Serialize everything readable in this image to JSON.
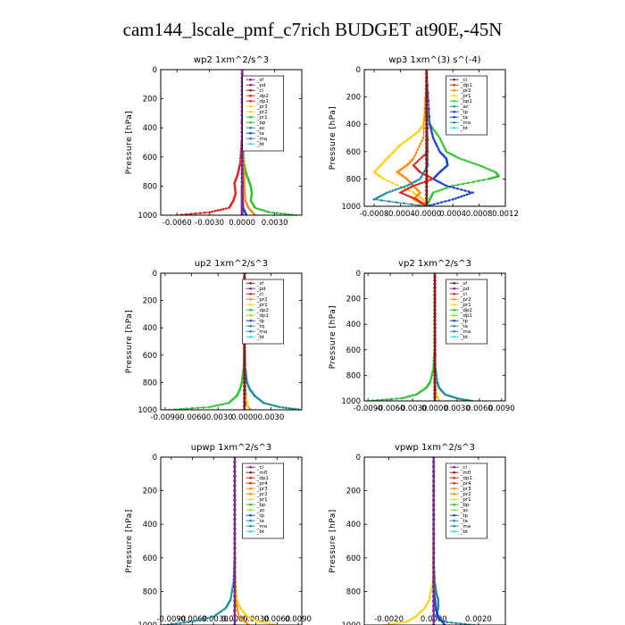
{
  "suptitle": "cam144_lscale_pmf_c7rich  BUDGET at90E,-45N",
  "colors": {
    "purple": "#7b2a8c",
    "darkred": "#8b1a1a",
    "red": "#dd2222",
    "orange": "#ff8c00",
    "yellow": "#ffd21f",
    "green": "#2fc42f",
    "blue": "#1c3fdd",
    "teal": "#1f8fa0",
    "lime": "#8fe030",
    "cyan": "#2ed8e8"
  },
  "chart_data": [
    {
      "type": "line",
      "title": "wp2  1xm^2/s^3",
      "ylabel": "Pressure [hPa]",
      "xlim": [
        -0.0075,
        0.0055
      ],
      "xticks": [
        "-0.0060",
        "-0.0030",
        "0.0000",
        "0.0030"
      ],
      "xtick_values": [
        -0.006,
        -0.003,
        0,
        0.003
      ],
      "ylim": [
        1000,
        0
      ],
      "yticks": [
        "0",
        "200",
        "400",
        "600",
        "800",
        "1000"
      ],
      "legend": [
        "_sf",
        "_pd",
        "_cl",
        "_dp2",
        "_dp1",
        "_pr3",
        "_pr2",
        "_pr1",
        "_bp",
        "_ac",
        "_ta",
        "_ma",
        "_bt"
      ],
      "legend_colors": [
        "purple",
        "purple",
        "darkred",
        "red",
        "red",
        "yellow",
        "yellow",
        "green",
        "green",
        "teal",
        "blue",
        "teal",
        "cyan"
      ],
      "series": [
        {
          "color": "green",
          "p": [
            0,
            500,
            650,
            720,
            760,
            800,
            850,
            900,
            950,
            980,
            1000
          ],
          "x": [
            0,
            5e-05,
            0.0002,
            0.0004,
            0.0006,
            0.0008,
            0.0009,
            0.0008,
            0.0012,
            0.0025,
            0.005
          ]
        },
        {
          "color": "red",
          "p": [
            0,
            500,
            650,
            720,
            780,
            850,
            900,
            950,
            980,
            1000
          ],
          "x": [
            0,
            -5e-05,
            -0.0002,
            -0.0004,
            -0.0007,
            -0.0006,
            -0.0008,
            -0.0012,
            -0.003,
            -0.006
          ]
        },
        {
          "color": "orange",
          "p": [
            0,
            600,
            700,
            800,
            900,
            950,
            1000
          ],
          "x": [
            0,
            5e-05,
            0.0002,
            0.0002,
            0.0003,
            0.0006,
            0.0012
          ]
        },
        {
          "color": "blue",
          "p": [
            0,
            700,
            850,
            950,
            1000
          ],
          "x": [
            0,
            2e-05,
            5e-05,
            0.0001,
            0.0004
          ]
        },
        {
          "color": "purple",
          "p": [
            0,
            200,
            400,
            600,
            800,
            900,
            1000
          ],
          "x": [
            0,
            0,
            0,
            0,
            0,
            0,
            0
          ]
        }
      ]
    },
    {
      "type": "line",
      "title": "wp3  1xm^(3) s^(-4)",
      "ylabel": "Pressure [hPa]",
      "xlim": [
        -0.00095,
        0.0012
      ],
      "xticks": [
        "-0.0008",
        "-0.0004",
        "-0.0000",
        "0.0004",
        "0.0008",
        "0.0012"
      ],
      "xtick_values": [
        -0.0008,
        -0.0004,
        0,
        0.0004,
        0.0008,
        0.0012
      ],
      "ylim": [
        1000,
        0
      ],
      "yticks": [
        "0",
        "200",
        "400",
        "600",
        "800",
        "1000"
      ],
      "legend": [
        "_cl",
        "_dp1",
        "_pr2",
        "_pr1",
        "_bp1",
        "_ac",
        "_tp",
        "_ta",
        "_ma",
        "_bt"
      ],
      "legend_colors": [
        "purple",
        "red",
        "orange",
        "yellow",
        "green",
        "teal",
        "blue",
        "blue",
        "teal",
        "cyan"
      ],
      "series": [
        {
          "color": "green",
          "p": [
            0,
            300,
            400,
            500,
            600,
            650,
            700,
            750,
            780,
            800,
            850,
            900,
            950,
            1000
          ],
          "x": [
            0,
            1e-05,
            5e-05,
            0.0002,
            0.0003,
            0.0005,
            0.0008,
            0.00105,
            0.0011,
            0.00095,
            0.0004,
            0.0001,
            5e-05,
            0
          ]
        },
        {
          "color": "yellow",
          "p": [
            0,
            300,
            400,
            450,
            500,
            550,
            600,
            650,
            700,
            750,
            800,
            900,
            950,
            1000
          ],
          "x": [
            0,
            -2e-05,
            -5e-05,
            -0.00012,
            -0.00025,
            -0.0004,
            -0.0005,
            -0.0006,
            -0.0007,
            -0.0008,
            -0.00065,
            -0.0002,
            -5e-05,
            0
          ]
        },
        {
          "color": "orange",
          "p": [
            0,
            500,
            650,
            700,
            750,
            800,
            850,
            900,
            950,
            1000
          ],
          "x": [
            0,
            -5e-05,
            -0.0002,
            -0.0003,
            -0.00045,
            -0.0003,
            -0.0002,
            -0.0001,
            -0.0002,
            0
          ]
        },
        {
          "color": "blue",
          "p": [
            0,
            400,
            500,
            600,
            650,
            700,
            750,
            800,
            850,
            900,
            950,
            1000
          ],
          "x": [
            0,
            5e-05,
            0.0001,
            0.0002,
            0.0003,
            0.00032,
            0.0002,
            0.0001,
            0.0003,
            0.0007,
            0.0004,
            0
          ]
        },
        {
          "color": "red",
          "p": [
            0,
            600,
            700,
            750,
            800,
            850,
            900,
            950,
            1000
          ],
          "x": [
            0,
            2e-05,
            -0.0002,
            -0.0001,
            0.0001,
            -0.0002,
            -0.0004,
            -0.00015,
            0
          ]
        },
        {
          "color": "teal",
          "p": [
            0,
            700,
            800,
            850,
            900,
            950,
            1000
          ],
          "x": [
            0,
            2e-05,
            -0.0001,
            -0.0003,
            -0.0006,
            -0.0008,
            0
          ]
        },
        {
          "color": "darkred",
          "p": [
            0,
            200,
            400,
            600,
            800,
            1000
          ],
          "x": [
            0,
            0,
            0,
            0,
            0,
            0
          ]
        }
      ]
    },
    {
      "type": "line",
      "title": "up2  1xm^2/s^3",
      "ylabel": "Pressure [hPa]",
      "xlim": [
        -0.0095,
        0.0065
      ],
      "xticks": [
        "-0.0090",
        "-0.0060",
        "-0.0030",
        "0.0000",
        "0.0030"
      ],
      "xtick_values": [
        -0.009,
        -0.006,
        -0.003,
        0,
        0.003
      ],
      "ylim": [
        1000,
        0
      ],
      "yticks": [
        "0",
        "200",
        "400",
        "600",
        "800",
        "1000"
      ],
      "legend": [
        "_sf",
        "_pd",
        "_cl",
        "_pr2",
        "_pr1",
        "_dp2",
        "_dp1",
        "_tp",
        "_tq",
        "_ma",
        "_bt"
      ],
      "legend_colors": [
        "darkred",
        "purple",
        "red",
        "orange",
        "yellow",
        "green",
        "lime",
        "blue",
        "teal",
        "teal",
        "cyan"
      ],
      "series": [
        {
          "color": "green",
          "p": [
            0,
            500,
            700,
            800,
            850,
            900,
            950,
            980,
            1000
          ],
          "x": [
            0,
            -2e-05,
            -0.0001,
            -0.0003,
            -0.0005,
            -0.0009,
            -0.0018,
            -0.004,
            -0.0085
          ]
        },
        {
          "color": "teal",
          "p": [
            0,
            500,
            700,
            800,
            850,
            900,
            950,
            980,
            1000
          ],
          "x": [
            0,
            2e-05,
            0.0001,
            0.0003,
            0.0006,
            0.0012,
            0.0022,
            0.004,
            0.0065
          ]
        },
        {
          "color": "blue",
          "p": [
            0,
            700,
            850,
            950,
            1000
          ],
          "x": [
            0,
            5e-05,
            0.0001,
            0.0002,
            0.0006
          ]
        },
        {
          "color": "yellow",
          "p": [
            0,
            800,
            900,
            950,
            1000
          ],
          "x": [
            0,
            3e-05,
            0.0001,
            0.0003,
            0.0005
          ]
        },
        {
          "color": "darkred",
          "p": [
            0,
            200,
            400,
            600,
            800,
            1000
          ],
          "x": [
            0,
            0,
            0,
            0,
            0,
            0
          ]
        }
      ]
    },
    {
      "type": "line",
      "title": "vp2  1xm^2/s^3",
      "ylabel": "Pressure [hPa]",
      "xlim": [
        -0.0095,
        0.0095
      ],
      "xticks": [
        "-0.0090",
        "-0.0060",
        "-0.0030",
        "0.0000",
        "0.0030",
        "0.0060",
        "0.0090"
      ],
      "xtick_values": [
        -0.009,
        -0.006,
        -0.003,
        0,
        0.003,
        0.006,
        0.009
      ],
      "ylim": [
        1000,
        0
      ],
      "yticks": [
        "0",
        "200",
        "400",
        "600",
        "800",
        "1000"
      ],
      "legend": [
        "_sf",
        "_pd",
        "_cl",
        "_pr2",
        "_pr1",
        "_dp2",
        "_dp1",
        "_tp",
        "_ta",
        "_ma",
        "_bt"
      ],
      "legend_colors": [
        "darkred",
        "purple",
        "red",
        "orange",
        "yellow",
        "green",
        "lime",
        "blue",
        "teal",
        "teal",
        "cyan"
      ],
      "series": [
        {
          "color": "green",
          "p": [
            0,
            600,
            750,
            850,
            900,
            950,
            980,
            1000
          ],
          "x": [
            0,
            -3e-05,
            -0.0002,
            -0.0006,
            -0.0012,
            -0.0025,
            -0.0045,
            -0.009
          ]
        },
        {
          "color": "teal",
          "p": [
            0,
            750,
            850,
            900,
            950,
            980,
            1000
          ],
          "x": [
            0,
            0.0001,
            0.0003,
            0.0006,
            0.0014,
            0.003,
            0.005
          ]
        },
        {
          "color": "yellow",
          "p": [
            0,
            800,
            900,
            950,
            1000
          ],
          "x": [
            0,
            2e-05,
            0.0001,
            0.0002,
            0.0006
          ]
        },
        {
          "color": "darkred",
          "p": [
            0,
            200,
            400,
            600,
            800,
            1000
          ],
          "x": [
            0,
            0,
            0,
            0,
            0,
            0
          ]
        }
      ]
    },
    {
      "type": "line",
      "title": "upwp  1xm^2/s^3",
      "ylabel": "Pressure [hPa]",
      "xlim": [
        -0.0105,
        0.0095
      ],
      "xticks": [
        "-0.0090",
        "-0.0060",
        "-0.0030",
        "0.0000",
        "0.0030",
        "0.0060",
        "0.0090"
      ],
      "xtick_values": [
        -0.009,
        -0.006,
        -0.003,
        0,
        0.003,
        0.006,
        0.009
      ],
      "ylim": [
        1000,
        0
      ],
      "yticks": [
        "0",
        "200",
        "400",
        "600",
        "800",
        "1000"
      ],
      "legend": [
        "_cl",
        "_mfl",
        "_dp1",
        "_pr4",
        "_pr3",
        "_pr2",
        "_pr1",
        "_bp",
        "_ac",
        "_tp",
        "_ta",
        "_ma",
        "_bt"
      ],
      "legend_colors": [
        "purple",
        "darkred",
        "red",
        "red",
        "orange",
        "orange",
        "yellow",
        "green",
        "lime",
        "blue",
        "teal",
        "teal",
        "cyan"
      ],
      "series": [
        {
          "color": "teal",
          "p": [
            0,
            600,
            750,
            850,
            900,
            950,
            980,
            1000
          ],
          "x": [
            0,
            -3e-05,
            -0.0002,
            -0.0006,
            -0.0013,
            -0.003,
            -0.006,
            -0.01
          ]
        },
        {
          "color": "yellow",
          "p": [
            0,
            750,
            850,
            900,
            950,
            980,
            1000
          ],
          "x": [
            0,
            0.0001,
            0.0003,
            0.0008,
            0.0018,
            0.0035,
            0.006
          ]
        },
        {
          "color": "orange",
          "p": [
            0,
            850,
            950,
            1000
          ],
          "x": [
            0,
            0.0001,
            0.0006,
            0.002
          ]
        },
        {
          "color": "purple",
          "p": [
            0,
            200,
            400,
            600,
            800,
            1000
          ],
          "x": [
            0,
            0,
            0,
            0,
            0,
            0
          ]
        }
      ]
    },
    {
      "type": "line",
      "title": "vpwp  1xm^2/s^3",
      "ylabel": "Pressure [hPa]",
      "xlim": [
        -0.0031,
        0.0032
      ],
      "xticks": [
        "-0.0020",
        "0.0000",
        "0.0020"
      ],
      "xtick_values": [
        -0.002,
        0,
        0.002
      ],
      "ylim": [
        1000,
        0
      ],
      "yticks": [
        "0",
        "200",
        "400",
        "600",
        "800",
        "1000"
      ],
      "legend": [
        "_cl",
        "_mfl",
        "_dp1",
        "_pr4",
        "_pr3",
        "_pr2",
        "_pr1",
        "_bp",
        "_ac",
        "_tp",
        "_ta",
        "_ma",
        "_bt"
      ],
      "legend_colors": [
        "purple",
        "darkred",
        "red",
        "red",
        "orange",
        "orange",
        "yellow",
        "green",
        "lime",
        "blue",
        "teal",
        "teal",
        "cyan"
      ],
      "series": [
        {
          "color": "yellow",
          "p": [
            0,
            750,
            850,
            900,
            950,
            980,
            1000
          ],
          "x": [
            0,
            -5e-05,
            -0.0002,
            -0.0004,
            -0.0008,
            -0.0012,
            -0.0022
          ]
        },
        {
          "color": "teal",
          "p": [
            0,
            650,
            750,
            800,
            850,
            900,
            950,
            980,
            1000
          ],
          "x": [
            0,
            1e-05,
            5e-05,
            0.0001,
            0.0002,
            0.0002,
            0.0001,
            0.0004,
            0.0018
          ]
        },
        {
          "color": "blue",
          "p": [
            0,
            800,
            900,
            950,
            1000
          ],
          "x": [
            0,
            2e-05,
            0.0001,
            0.0002,
            0.0005
          ]
        },
        {
          "color": "purple",
          "p": [
            0,
            200,
            400,
            600,
            800,
            1000
          ],
          "x": [
            0,
            0,
            0,
            0,
            0,
            0
          ]
        }
      ]
    }
  ]
}
